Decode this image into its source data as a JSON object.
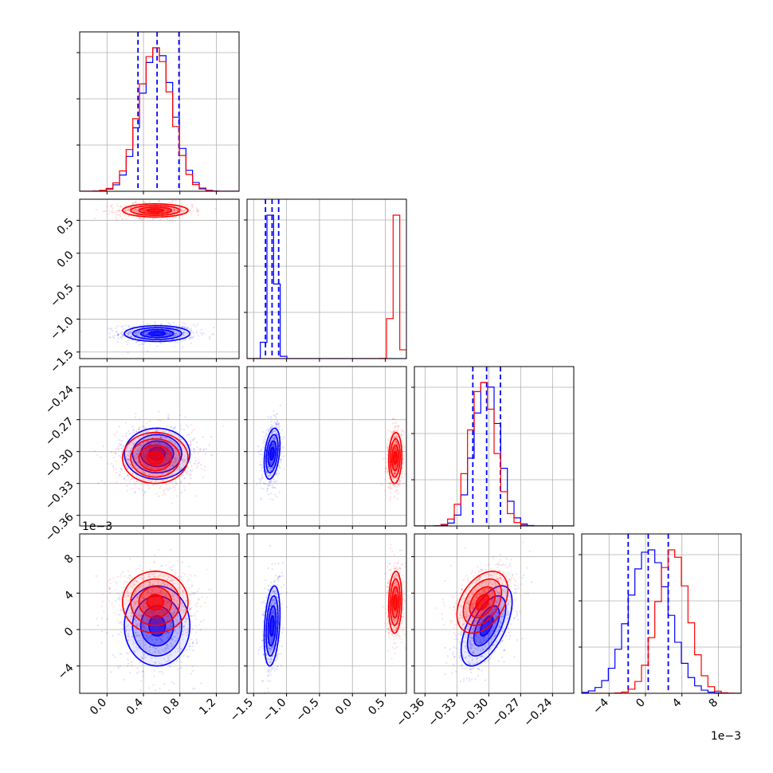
{
  "chart_data": {
    "type": "corner",
    "title": "",
    "colors": {
      "series_a": "#0000ff",
      "series_b": "#ff0000",
      "grid": "#b0b0b0"
    },
    "series": [
      {
        "color": "#0000ff",
        "means": [
          0.55,
          -1.22,
          -0.302,
          0.0004
        ],
        "sds": [
          0.18,
          0.06,
          0.012,
          0.0022
        ],
        "quantile_lines": [
          [
            0.34,
            0.55,
            0.79
          ],
          [
            -1.32,
            -1.22,
            -1.12
          ],
          [
            -0.315,
            -0.302,
            -0.289
          ],
          [
            -0.0019,
            0.0003,
            0.0025
          ]
        ]
      },
      {
        "color": "#ff0000",
        "means": [
          0.53,
          0.65,
          -0.306,
          0.003
        ],
        "sds": [
          0.18,
          0.05,
          0.012,
          0.0017
        ]
      }
    ],
    "correlations": {
      "series_a": {
        "d_c": 0.6,
        "d_b": 0.3,
        "c_b": 0.35
      },
      "series_b": {
        "d_c": 0.4,
        "d_b": 0.1,
        "c_b": 0.1
      }
    },
    "dims": [
      {
        "range": [
          -0.3,
          1.45
        ],
        "ticks": [
          "0.0",
          "0.4",
          "0.8",
          "1.2"
        ],
        "tick_values": [
          0,
          0.4,
          0.8,
          1.2
        ],
        "scale": 1
      },
      {
        "range": [
          -1.6,
          0.82
        ],
        "ticks": [
          "−1.5",
          "−1.0",
          "−0.5",
          "0.0",
          "0.5"
        ],
        "tick_values": [
          -1.5,
          -1.0,
          -0.5,
          0.0,
          0.5
        ],
        "scale": 1
      },
      {
        "range": [
          -0.37,
          -0.22
        ],
        "ticks": [
          "−0.36",
          "−0.33",
          "−0.30",
          "−0.27",
          "−0.24"
        ],
        "tick_values": [
          -0.36,
          -0.33,
          -0.3,
          -0.27,
          -0.24
        ],
        "scale": 1
      },
      {
        "range": [
          -0.007,
          0.0105
        ],
        "ticks": [
          "−4",
          "0",
          "4",
          "8"
        ],
        "tick_values": [
          -0.004,
          0,
          0.004,
          0.008
        ],
        "scale": 0.001,
        "offset_text": "1e−3"
      }
    ]
  }
}
